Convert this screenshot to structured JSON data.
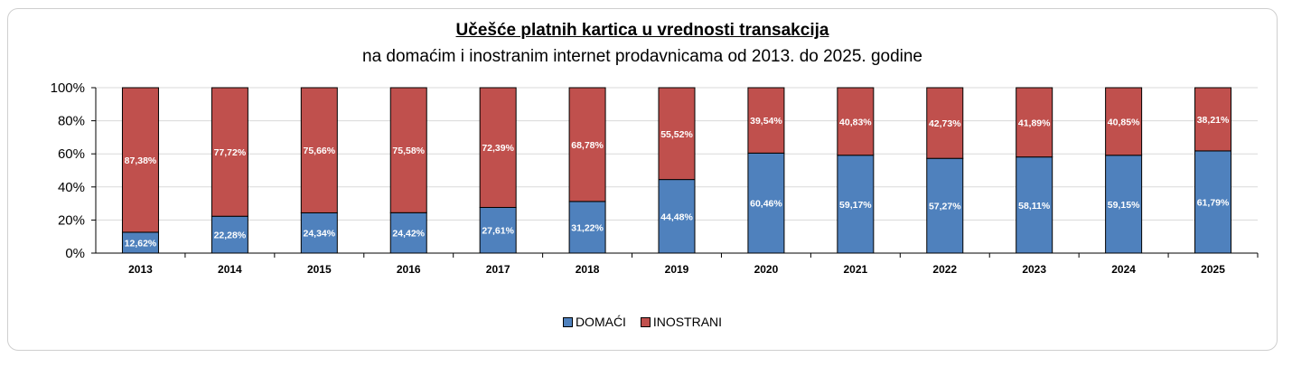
{
  "chart_data": {
    "type": "bar",
    "stacked": true,
    "title": "Učešće platnih kartica u vrednosti transakcija",
    "subtitle": "na domaćim i inostranim internet prodavnicama od 2013. do 2025. godine",
    "categories": [
      "2013",
      "2014",
      "2015",
      "2016",
      "2017",
      "2018",
      "2019",
      "2020",
      "2021",
      "2022",
      "2023",
      "2024",
      "2025"
    ],
    "series": [
      {
        "name": "DOMAĆI",
        "color": "#4f81bd",
        "values": [
          12.62,
          22.28,
          24.34,
          24.42,
          27.61,
          31.22,
          44.48,
          60.46,
          59.17,
          57.27,
          58.11,
          59.15,
          61.79
        ],
        "labels": [
          "12,62%",
          "22,28%",
          "24,34%",
          "24,42%",
          "27,61%",
          "31,22%",
          "44,48%",
          "60,46%",
          "59,17%",
          "57,27%",
          "58,11%",
          "59,15%",
          "61,79%"
        ]
      },
      {
        "name": "INOSTRANI",
        "color": "#c0504d",
        "values": [
          87.38,
          77.72,
          75.66,
          75.58,
          72.39,
          68.78,
          55.52,
          39.54,
          40.83,
          42.73,
          41.89,
          40.85,
          38.21
        ],
        "labels": [
          "87,38%",
          "77,72%",
          "75,66%",
          "75,58%",
          "72,39%",
          "68,78%",
          "55,52%",
          "39,54%",
          "40,83%",
          "42,73%",
          "41,89%",
          "40,85%",
          "38,21%"
        ]
      }
    ],
    "yticks": [
      "0%",
      "20%",
      "40%",
      "60%",
      "80%",
      "100%"
    ],
    "ylim": [
      0,
      100
    ],
    "grid": true,
    "legend_position": "bottom",
    "xlabel": "",
    "ylabel": ""
  }
}
